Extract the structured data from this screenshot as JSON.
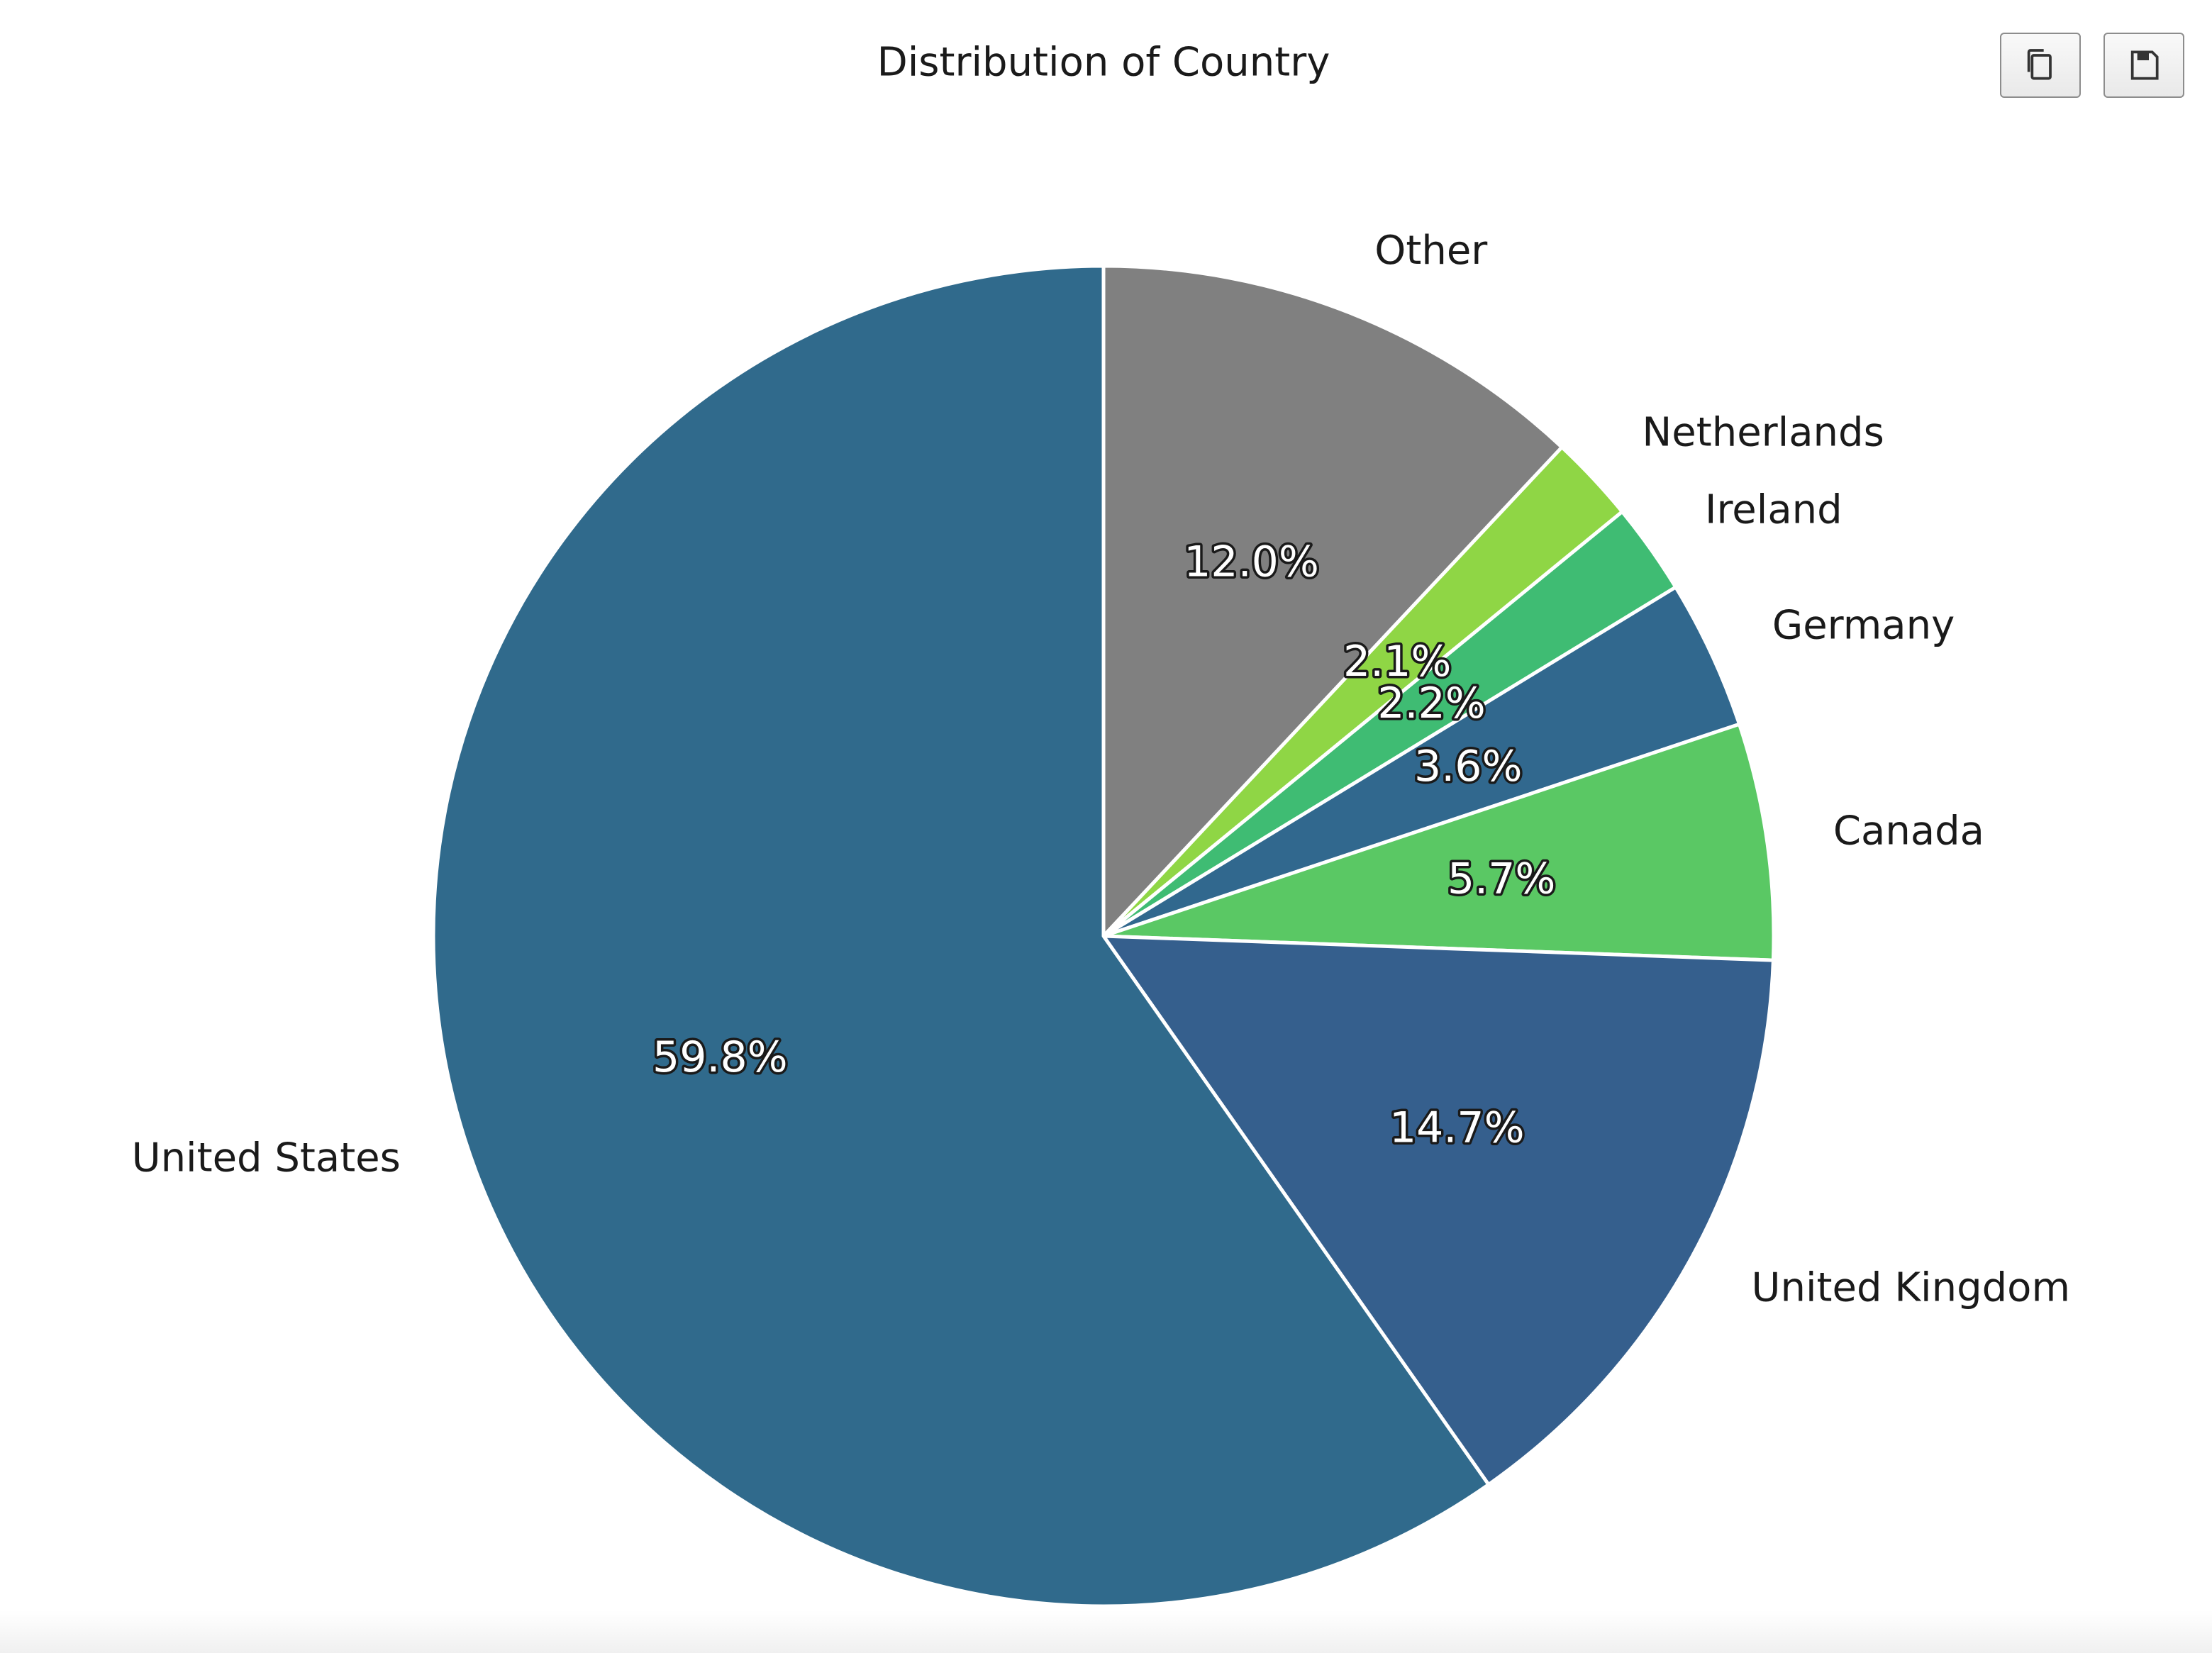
{
  "toolbar": {
    "copy_icon": "copy-icon",
    "save_icon": "floppy-disk-icon"
  },
  "chart_data": {
    "type": "pie",
    "title": "Distribution of Country",
    "start_angle_deg": 90,
    "direction": "clockwise",
    "slice_edge_color": "#ffffff",
    "slices": [
      {
        "label": "Other",
        "value": 12.0,
        "pct_label": "12.0%",
        "color": "#808080"
      },
      {
        "label": "Netherlands",
        "value": 2.1,
        "pct_label": "2.1%",
        "color": "#8fd645"
      },
      {
        "label": "Ireland",
        "value": 2.2,
        "pct_label": "2.2%",
        "color": "#3fbc73"
      },
      {
        "label": "Germany",
        "value": 3.6,
        "pct_label": "3.6%",
        "color": "#31688e"
      },
      {
        "label": "Canada",
        "value": 5.7,
        "pct_label": "5.7%",
        "color": "#5ac864"
      },
      {
        "label": "United Kingdom",
        "value": 14.7,
        "pct_label": "14.7%",
        "color": "#355f8d"
      },
      {
        "label": "United States",
        "value": 59.8,
        "pct_label": "59.8%",
        "color": "#306a8c"
      }
    ]
  }
}
